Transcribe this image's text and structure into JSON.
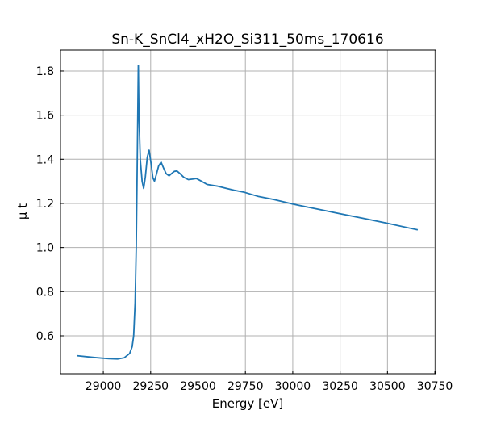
{
  "chart_data": {
    "type": "line",
    "title": "Sn-K_SnCl4_xH2O_Si311_50ms_170616",
    "xlabel": "Energy [eV]",
    "ylabel": "μ t",
    "xlim": [
      28774,
      30754
    ],
    "ylim": [
      0.428,
      1.895
    ],
    "grid": true,
    "xticks": [
      29000,
      29250,
      29500,
      29750,
      30000,
      30250,
      30500,
      30750
    ],
    "yticks": [
      0.6,
      0.8,
      1.0,
      1.2,
      1.4,
      1.6,
      1.8
    ],
    "ytick_labels": [
      "0.6",
      "0.8",
      "1.0",
      "1.2",
      "1.4",
      "1.6",
      "1.8"
    ],
    "series": [
      {
        "color": "#1f77b4",
        "x": [
          28860,
          28950,
          29030,
          29075,
          29110,
          29139,
          29152,
          29160,
          29168,
          29174,
          29178,
          29182,
          29185,
          29188,
          29195,
          29205,
          29213,
          29222,
          29232,
          29242,
          29252,
          29262,
          29270,
          29280,
          29292,
          29305,
          29318,
          29332,
          29347,
          29360,
          29375,
          29389,
          29405,
          29425,
          29449,
          29470,
          29491,
          29515,
          29548,
          29605,
          29650,
          29690,
          29746,
          29816,
          29900,
          30000,
          30125,
          30250,
          30375,
          30500,
          30660
        ],
        "y": [
          0.51,
          0.502,
          0.496,
          0.495,
          0.5,
          0.52,
          0.55,
          0.6,
          0.75,
          1.0,
          1.3,
          1.6,
          1.826,
          1.62,
          1.4,
          1.3,
          1.268,
          1.32,
          1.41,
          1.441,
          1.38,
          1.315,
          1.301,
          1.33,
          1.37,
          1.387,
          1.36,
          1.335,
          1.325,
          1.335,
          1.345,
          1.347,
          1.335,
          1.318,
          1.308,
          1.31,
          1.313,
          1.302,
          1.286,
          1.278,
          1.268,
          1.26,
          1.25,
          1.232,
          1.218,
          1.197,
          1.175,
          1.153,
          1.132,
          1.11,
          1.08
        ]
      }
    ]
  }
}
